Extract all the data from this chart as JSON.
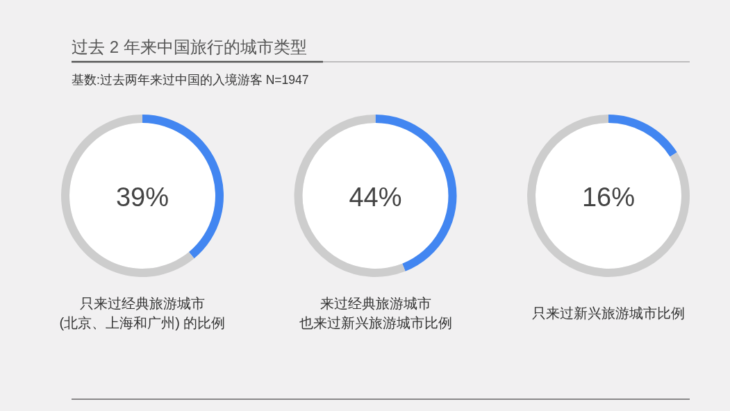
{
  "chart_data": [
    {
      "type": "donut",
      "title": "过去 2 年来中国旅行的城市类型",
      "subtitle": "基数:过去两年来过中国的入境游客 N=1947",
      "categories": [
        null,
        null
      ],
      "values": [
        39,
        61
      ],
      "colors": [
        "#4286f1",
        "#cdcdcd"
      ],
      "annotations": [
        "39%",
        "只来过经典旅游城市",
        "(北京、上海和广州) 的比例"
      ]
    },
    {
      "type": "donut",
      "categories": [
        null,
        null
      ],
      "values": [
        44,
        56
      ],
      "colors": [
        "#4286f1",
        "#cdcdcd"
      ],
      "annotations": [
        "44%",
        "来过经典旅游城市",
        "也来过新兴旅游城市比例"
      ]
    },
    {
      "type": "donut",
      "categories": [
        null,
        null
      ],
      "values": [
        16,
        84
      ],
      "colors": [
        "#4286f1",
        "#cdcdcd"
      ],
      "annotations": [
        "16%",
        "只来过新兴旅游城市比例"
      ]
    }
  ]
}
